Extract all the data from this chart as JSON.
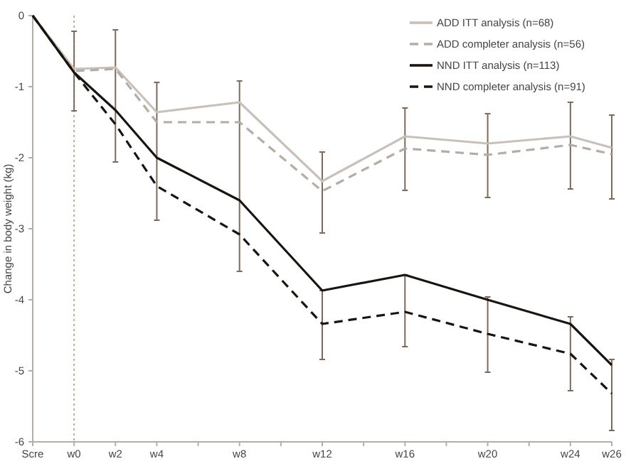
{
  "chart_data": {
    "type": "line",
    "ylabel": "Change in body weight (kg)",
    "categories": [
      "Scre",
      "w0",
      "w2",
      "w4",
      null,
      "w8",
      null,
      "w12",
      null,
      "w16",
      null,
      "w20",
      null,
      "w24",
      "w26"
    ],
    "ylim": [
      -6,
      0
    ],
    "yticks": [
      0,
      -1,
      -2,
      -3,
      -4,
      -5,
      -6
    ],
    "legend": "top right",
    "marker": "none",
    "ref_lines": [
      {
        "axis": "x",
        "value": "w0",
        "color": "#c4a890",
        "line_style": "dotted"
      }
    ],
    "series": [
      {
        "name": "ADD ITT analysis (n=68)",
        "color": "#c9c1b9",
        "line_style": "solid",
        "values": [
          0,
          -0.75,
          -0.73,
          -1.36,
          null,
          -1.22,
          null,
          -2.33,
          null,
          -1.7,
          null,
          -1.8,
          null,
          -1.7,
          -1.86
        ],
        "errors": [
          null,
          [
            -1.34,
            -0.22
          ],
          [
            -2.06,
            -0.2
          ],
          [
            -2.88,
            -0.94
          ],
          null,
          [
            -3.6,
            -0.92
          ],
          null,
          [
            -3.06,
            -1.92
          ],
          null,
          [
            -2.46,
            -1.3
          ],
          null,
          [
            -2.56,
            -1.38
          ],
          null,
          [
            -2.44,
            -1.22
          ],
          [
            -2.58,
            -1.4
          ]
        ]
      },
      {
        "name": "ADD completer analysis (n=56)",
        "color": "#b5ada5",
        "line_style": "dashed",
        "values": [
          0,
          -0.78,
          -0.75,
          -1.5,
          null,
          -1.5,
          null,
          -2.47,
          null,
          -1.87,
          null,
          -1.96,
          null,
          -1.82,
          -1.95
        ]
      },
      {
        "name": "NND ITT analysis (n=113)",
        "color": "#1a1410",
        "line_style": "solid",
        "values": [
          0,
          -0.8,
          -1.33,
          -2.0,
          null,
          -2.6,
          null,
          -3.87,
          null,
          -3.65,
          null,
          -4.0,
          null,
          -4.34,
          -4.92
        ],
        "errors": [
          null,
          null,
          null,
          null,
          null,
          null,
          null,
          [
            -4.84,
            -3.87
          ],
          null,
          [
            -4.66,
            -3.65
          ],
          null,
          [
            -5.02,
            -3.96
          ],
          null,
          [
            -5.28,
            -4.24
          ],
          [
            -5.84,
            -4.84
          ]
        ]
      },
      {
        "name": "NND completer analysis (n=91)",
        "color": "#1a1410",
        "line_style": "dashed",
        "values": [
          0,
          -0.8,
          -1.53,
          -2.4,
          null,
          -3.08,
          null,
          -4.34,
          null,
          -4.17,
          null,
          -4.48,
          null,
          -4.76,
          -5.32
        ]
      }
    ]
  }
}
